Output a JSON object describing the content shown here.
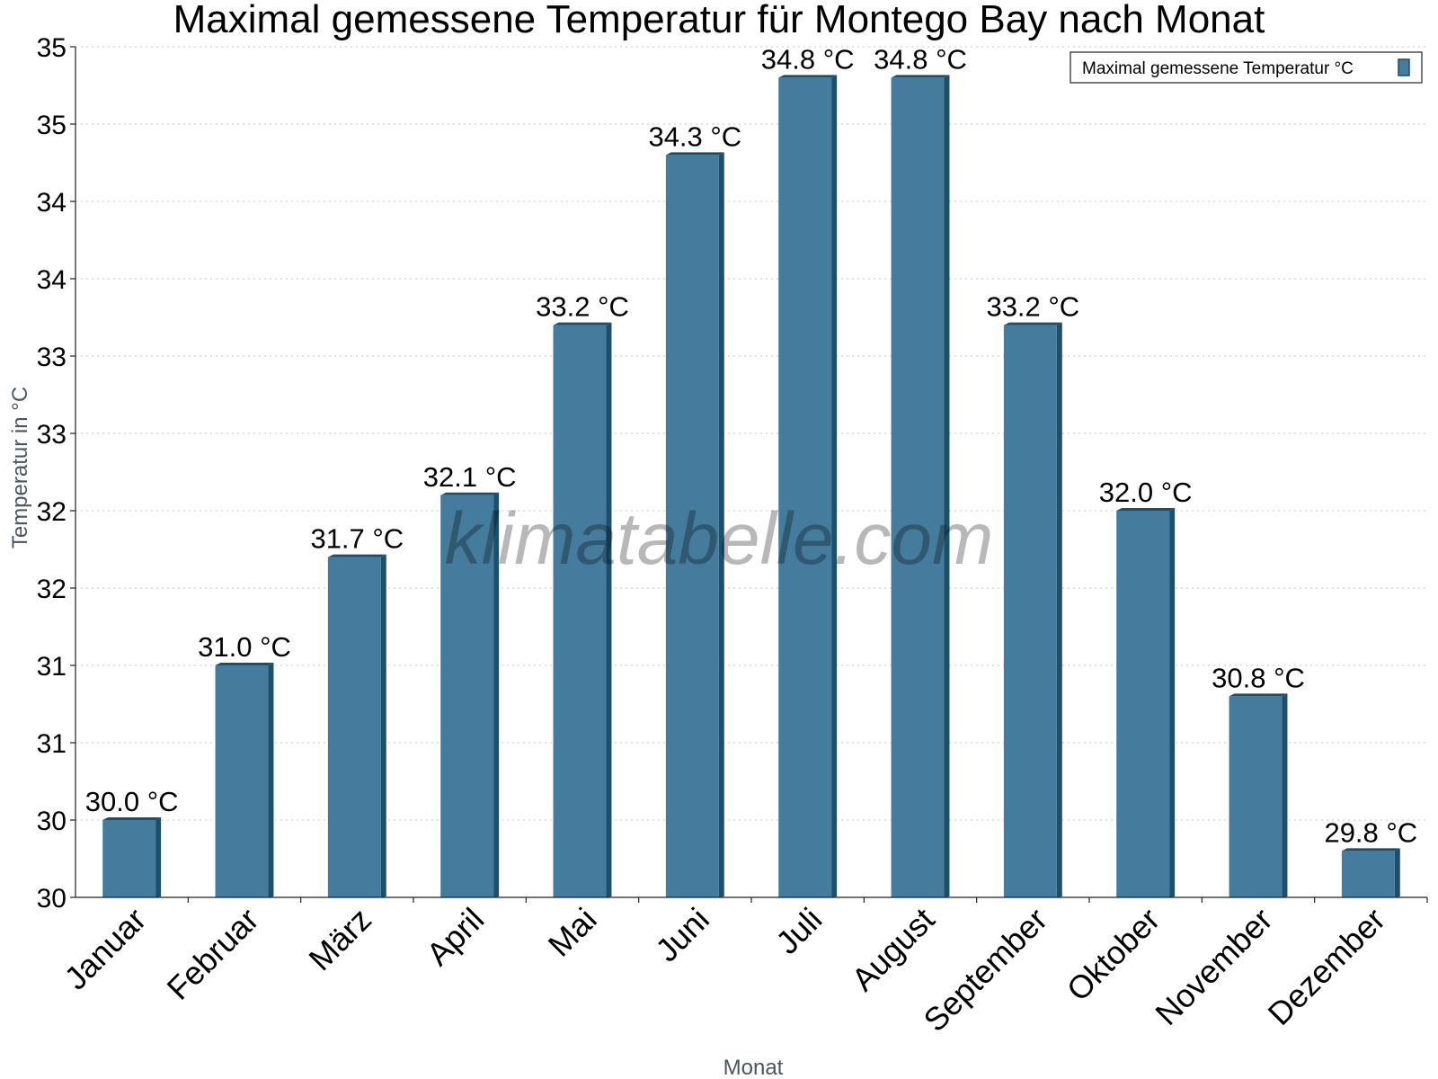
{
  "chart_data": {
    "type": "bar",
    "title": "Maximal gemessene Temperatur für Montego Bay nach Monat",
    "xlabel": "Monat",
    "ylabel": "Temperatur in °C",
    "categories": [
      "Januar",
      "Februar",
      "März",
      "April",
      "Mai",
      "Juni",
      "Juli",
      "August",
      "September",
      "Oktober",
      "November",
      "Dezember"
    ],
    "series": [
      {
        "name": "Maximal gemessene Temperatur °C",
        "values": [
          30.0,
          31.0,
          31.7,
          32.1,
          33.2,
          34.3,
          34.8,
          34.8,
          33.2,
          32.0,
          30.8,
          29.8
        ],
        "labels": [
          "30.0 °C",
          "31.0 °C",
          "31.7 °C",
          "32.1 °C",
          "33.2 °C",
          "34.3 °C",
          "34.8 °C",
          "34.8 °C",
          "33.2 °C",
          "32.0 °C",
          "30.8 °C",
          "29.8 °C"
        ],
        "color": "#457b9d",
        "side_color": "#1d4e6b"
      }
    ],
    "ylim": [
      29.5,
      35.0
    ],
    "y_ticks": [
      29.5,
      30.0,
      30.5,
      31.0,
      31.5,
      32.0,
      32.5,
      33.0,
      33.5,
      34.0,
      34.5,
      35.0
    ],
    "y_tick_labels": [
      "30",
      "30",
      "31",
      "31",
      "32",
      "32",
      "33",
      "33",
      "34",
      "34",
      "35",
      "35"
    ],
    "grid": true,
    "legend_position": "top-right",
    "watermark": "klimatabelle.com"
  }
}
